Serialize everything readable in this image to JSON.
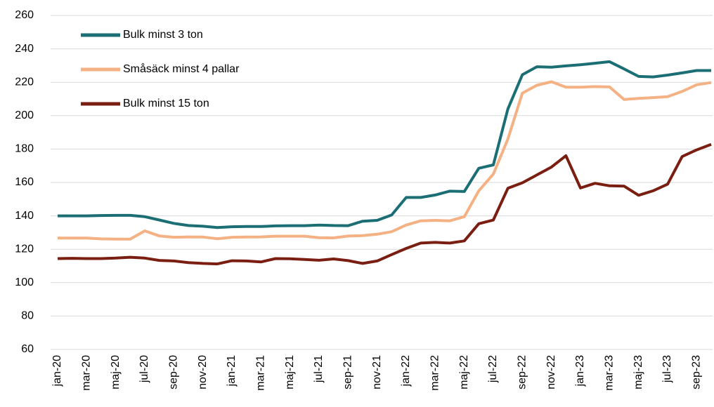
{
  "chart_data": {
    "type": "line",
    "categories": [
      "jan-20",
      null,
      "mar-20",
      null,
      "maj-20",
      null,
      "jul-20",
      null,
      "sep-20",
      null,
      "nov-20",
      null,
      "jan-21",
      null,
      "mar-21",
      null,
      "maj-21",
      null,
      "jul-21",
      null,
      "sep-21",
      null,
      "nov-21",
      null,
      "jan-22",
      null,
      "mar-22",
      null,
      "maj-22",
      null,
      "jul-22",
      null,
      "sep-22",
      null,
      "nov-22",
      null,
      "jan-23",
      null,
      "mar-23",
      null,
      "maj-23",
      null,
      "jul-23",
      null,
      "sep-23",
      null
    ],
    "series": [
      {
        "name": "Bulk minst 3 ton",
        "color": "#1a6e74",
        "values": [
          140,
          140,
          140,
          140.2,
          140.3,
          140.3,
          139.5,
          137.5,
          135.5,
          134.2,
          133.8,
          133,
          133.5,
          133.6,
          133.6,
          134,
          134.1,
          134.1,
          134.5,
          134.2,
          134.1,
          136.8,
          137.3,
          140.5,
          151,
          151,
          152.5,
          154.8,
          154.6,
          168.5,
          170.5,
          204,
          224.5,
          229.3,
          229,
          229.8,
          230.5,
          231.4,
          232.3,
          228,
          223.5,
          223.2,
          224.3,
          225.6,
          227,
          227
        ]
      },
      {
        "name": "Småsäck minst 4 pallar",
        "color": "#f4b183",
        "values": [
          126.7,
          126.7,
          126.7,
          126.2,
          126.1,
          126.1,
          131,
          128,
          127.2,
          127.4,
          127.3,
          126.3,
          127.2,
          127.3,
          127.4,
          127.8,
          127.8,
          127.8,
          126.9,
          126.8,
          127.9,
          128.2,
          129,
          130.5,
          134.5,
          137,
          137.3,
          137,
          139.5,
          155,
          165,
          186,
          213.5,
          218.2,
          220.3,
          217,
          217,
          217.4,
          217.2,
          209.7,
          210.3,
          210.8,
          211.4,
          214.5,
          218.5,
          219.8
        ]
      },
      {
        "name": "Bulk minst 15 ton",
        "color": "#7b1e12",
        "values": [
          114.4,
          114.6,
          114.4,
          114.4,
          114.7,
          115.2,
          114.7,
          113.3,
          113,
          112,
          111.5,
          111.2,
          113.1,
          113,
          112.4,
          114.4,
          114.3,
          113.9,
          113.4,
          114.2,
          113.2,
          111.5,
          113,
          116.8,
          120.5,
          123.7,
          124.1,
          123.7,
          125,
          135.3,
          137.5,
          156.5,
          159.8,
          164.5,
          169.2,
          176,
          156.7,
          159.5,
          158,
          157.8,
          152.3,
          155,
          159,
          175.5,
          179.5,
          182.8
        ]
      }
    ],
    "ylim": [
      60,
      260
    ],
    "yticks": [
      60,
      80,
      100,
      120,
      140,
      160,
      180,
      200,
      220,
      240,
      260
    ],
    "grid": true,
    "legend": "upper left"
  }
}
